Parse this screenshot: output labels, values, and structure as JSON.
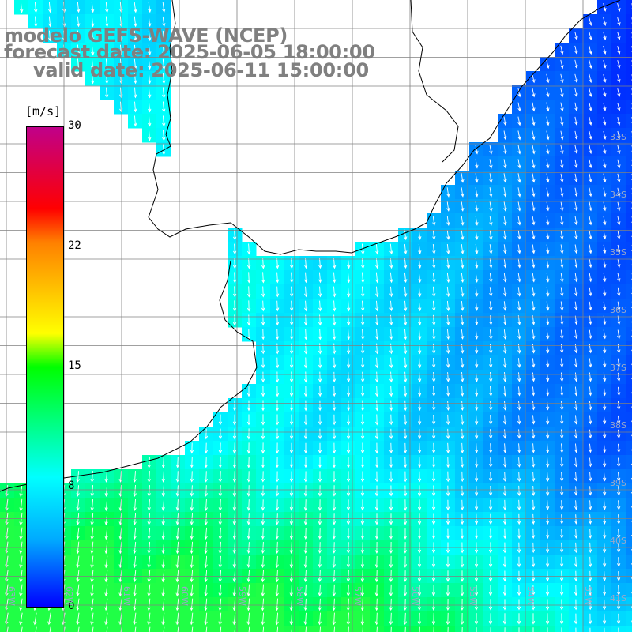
{
  "title": {
    "line1": "modelo GEFS-WAVE (NCEP)",
    "line2": "forecast date: 2025-06-05 18:00:00",
    "line3": "valid date: 2025-06-11 15:00:00"
  },
  "colorbar": {
    "unit": "[m/s]",
    "ticks": [
      "30",
      "22",
      "15",
      "8",
      "0"
    ],
    "tick_values": [
      30,
      22,
      15,
      8,
      0
    ],
    "colors": [
      "#0000ff",
      "#00aaff",
      "#00ffff",
      "#00ff00",
      "#ffff00",
      "#ff8000",
      "#ff0000",
      "#c0008a"
    ]
  },
  "lat_labels": [
    "33S",
    "34S",
    "35S",
    "36S",
    "37S",
    "38S",
    "39S",
    "40S",
    "41S"
  ],
  "lon_labels": [
    "63W",
    "62W",
    "61W",
    "60W",
    "59W",
    "58W",
    "57W",
    "56W",
    "55W",
    "54W",
    "53W",
    "52W",
    "51W"
  ],
  "colors": {
    "land": "#ffffff",
    "coastline": "#000000",
    "grid": "#808080",
    "arrow": "#ffffff"
  },
  "wind_field_description_key": "wind-speed-and-direction"
}
